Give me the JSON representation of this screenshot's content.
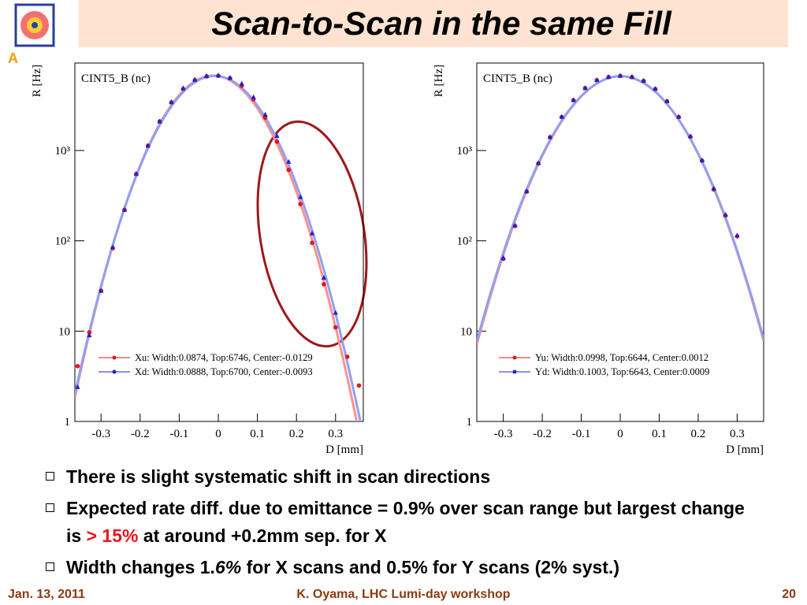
{
  "title": "Scan-to-Scan in the same Fill",
  "chart_data": [
    {
      "type": "scatter",
      "label": "CINT5_B  (nc)",
      "x_label": "D [mm]",
      "y_label": "R [Hz]",
      "log_y": true,
      "xlim": [
        -0.367,
        0.371
      ],
      "ylim": [
        1,
        9300
      ],
      "xticks": [
        -0.3,
        -0.2,
        -0.1,
        0,
        0.1,
        0.2,
        0.3
      ],
      "yticks": [
        1,
        10,
        {
          "value": 100,
          "label": "10²"
        },
        {
          "value": 1000,
          "label": "10³"
        }
      ],
      "x": [
        -0.36,
        -0.33,
        -0.3,
        -0.27,
        -0.24,
        -0.21,
        -0.18,
        -0.15,
        -0.12,
        -0.09,
        -0.06,
        -0.03,
        0,
        0.03,
        0.06,
        0.09,
        0.12,
        0.15,
        0.18,
        0.21,
        0.24,
        0.27,
        0.3,
        0.33,
        0.36
      ],
      "series": [
        {
          "name": "Xu: Width:0.0874, Top:6746, Center:-0.0129",
          "color": "#e8141c",
          "fit_color": "#ff9090",
          "fit": {
            "width": 0.0874,
            "top": 6746,
            "center": -0.0129
          },
          "values": [
            4.1,
            9.7,
            28,
            83,
            220,
            550,
            1130,
            2100,
            3400,
            4800,
            6000,
            6600,
            6700,
            6300,
            5200,
            3700,
            2300,
            1250,
            610,
            255,
            95,
            33,
            11,
            5.2,
            2.5
          ]
        },
        {
          "name": "Xd: Width:0.0888, Top:6700, Center:-0.0093",
          "color": "#2222cc",
          "fit_color": "#90a0f0",
          "fit": {
            "width": 0.0888,
            "top": 6700,
            "center": -0.0093
          },
          "values": [
            2.4,
            9,
            28,
            85,
            220,
            550,
            1130,
            2100,
            3450,
            4900,
            6100,
            6700,
            6800,
            6400,
            5500,
            3900,
            2500,
            1450,
            750,
            305,
            121,
            39,
            16,
            null,
            null
          ]
        }
      ]
    },
    {
      "type": "scatter",
      "label": "CINT5_B  (nc)",
      "x_label": "D [mm]",
      "y_label": "R [Hz]",
      "log_y": true,
      "xlim": [
        -0.368,
        0.368
      ],
      "ylim": [
        1,
        9300
      ],
      "xticks": [
        -0.3,
        -0.2,
        -0.1,
        0,
        0.1,
        0.2,
        0.3
      ],
      "yticks": [
        1,
        10,
        {
          "value": 100,
          "label": "10²"
        },
        {
          "value": 1000,
          "label": "10³"
        }
      ],
      "x": [
        -0.3,
        -0.27,
        -0.24,
        -0.21,
        -0.18,
        -0.15,
        -0.12,
        -0.09,
        -0.06,
        -0.03,
        0,
        0.03,
        0.06,
        0.09,
        0.12,
        0.15,
        0.18,
        0.21,
        0.24,
        0.27,
        0.3
      ],
      "series": [
        {
          "name": "Yu: Width:0.0998, Top:6644, Center:0.0012",
          "color": "#e8141c",
          "fit_color": "#ff9090",
          "fit": {
            "width": 0.0998,
            "top": 6644,
            "center": 0.0012
          },
          "values": [
            63,
            146,
            350,
            720,
            1400,
            2350,
            3600,
            4900,
            6000,
            6500,
            6700,
            6500,
            5900,
            4800,
            3500,
            2350,
            1420,
            770,
            370,
            190,
            112
          ]
        },
        {
          "name": "Yd: Width:0.1003, Top:6643, Center:0.0009",
          "color": "#2222cc",
          "fit_color": "#90a0f0",
          "fit": {
            "width": 0.1003,
            "top": 6643,
            "center": 0.0009
          },
          "values": [
            65,
            148,
            355,
            725,
            1410,
            2360,
            3620,
            4920,
            6020,
            6520,
            6720,
            6520,
            5920,
            4820,
            3520,
            2370,
            1440,
            780,
            380,
            195,
            115
          ]
        }
      ]
    }
  ],
  "bullets": [
    {
      "parts": [
        "There is slight systematic shift in scan directions"
      ]
    },
    {
      "parts": [
        "Expected rate diff. due to emittance = 0.9% over scan range but largest change is ",
        "> 15%",
        " at around +0.2mm sep. for X"
      ]
    },
    {
      "parts": [
        "Width changes 1.",
        "6%",
        " for X scans and 0.5% for Y scans (2% syst.)"
      ]
    }
  ],
  "footer": {
    "date": "Jan. 13, 2011",
    "event": "K. Oyama, LHC Lumi-day workshop",
    "page": "20"
  }
}
